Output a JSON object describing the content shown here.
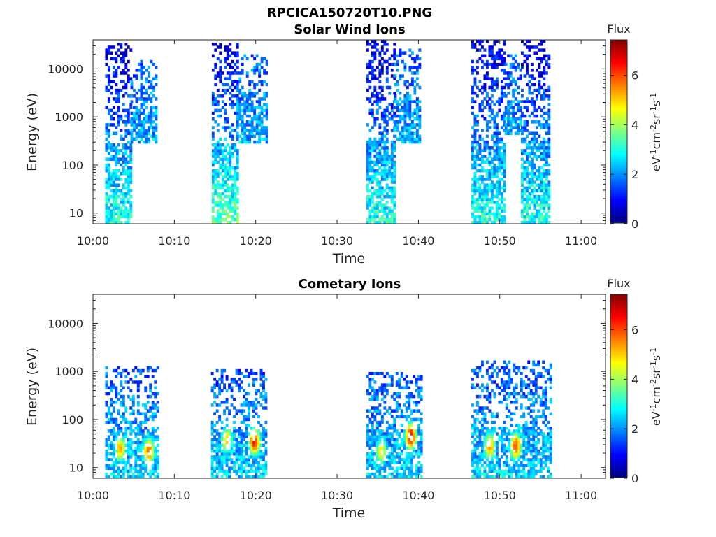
{
  "figure_title": "RPCICA150720T10.PNG",
  "colorbar": {
    "title": "Flux",
    "label_parts": [
      "eV",
      "-1",
      "cm",
      "-2",
      "sr",
      "-1",
      "s",
      "-1"
    ],
    "range": [
      0,
      7.4
    ],
    "ticks": [
      {
        "value": 0,
        "label": "0"
      },
      {
        "value": 2,
        "label": "2"
      },
      {
        "value": 4,
        "label": "4"
      },
      {
        "value": 6,
        "label": "6"
      }
    ],
    "colormap": "jet"
  },
  "chart_data": [
    {
      "type": "heatmap",
      "title": "Solar Wind Ions",
      "xlabel": "Time",
      "ylabel": "Energy (eV)",
      "yscale": "log",
      "xlim": [
        "10:00",
        "11:03"
      ],
      "ylim": [
        6,
        40000
      ],
      "x_ticks": [
        "10:00",
        "10:10",
        "10:20",
        "10:30",
        "10:40",
        "10:50",
        "11:00"
      ],
      "y_ticks": [
        {
          "value": 10,
          "label": "10"
        },
        {
          "value": 100,
          "label": "100"
        },
        {
          "value": 1000,
          "label": "1000"
        },
        {
          "value": 10000,
          "label": "10000"
        }
      ],
      "value_label": "Flux",
      "blocks": [
        {
          "time_start": "10:01.5",
          "time_end": "10:04.6",
          "energy_min": 6,
          "energy_max": 35000,
          "flux_low_energy": 3.0,
          "flux_high_energy": 0.6
        },
        {
          "time_start": "10:04.6",
          "time_end": "10:07.7",
          "energy_min": 300,
          "energy_max": 15000,
          "flux_low_energy": 2.2,
          "flux_high_energy": 1.6
        },
        {
          "time_start": "10:14.6",
          "time_end": "10:17.6",
          "energy_min": 6,
          "energy_max": 35000,
          "flux_low_energy": 3.4,
          "flux_high_energy": 0.6
        },
        {
          "time_start": "10:17.6",
          "time_end": "10:21.4",
          "energy_min": 300,
          "energy_max": 20000,
          "flux_low_energy": 2.2,
          "flux_high_energy": 1.6
        },
        {
          "time_start": "10:33.6",
          "time_end": "10:37.0",
          "energy_min": 6,
          "energy_max": 40000,
          "flux_low_energy": 3.0,
          "flux_high_energy": 0.6
        },
        {
          "time_start": "10:37.0",
          "time_end": "10:40.0",
          "energy_min": 300,
          "energy_max": 25000,
          "flux_low_energy": 2.2,
          "flux_high_energy": 1.6
        },
        {
          "time_start": "10:46.5",
          "time_end": "10:50.6",
          "energy_min": 6,
          "energy_max": 40000,
          "flux_low_energy": 3.0,
          "flux_high_energy": 0.6
        },
        {
          "time_start": "10:50.6",
          "time_end": "10:52.6",
          "energy_min": 400,
          "energy_max": 20000,
          "flux_low_energy": 2.2,
          "flux_high_energy": 1.6
        },
        {
          "time_start": "10:52.6",
          "time_end": "10:56.0",
          "energy_min": 6,
          "energy_max": 40000,
          "flux_low_energy": 3.0,
          "flux_high_energy": 0.6
        }
      ]
    },
    {
      "type": "heatmap",
      "title": "Cometary Ions",
      "xlabel": "Time",
      "ylabel": "Energy (eV)",
      "yscale": "log",
      "xlim": [
        "10:00",
        "11:03"
      ],
      "ylim": [
        6,
        40000
      ],
      "x_ticks": [
        "10:00",
        "10:10",
        "10:20",
        "10:30",
        "10:40",
        "10:50",
        "11:00"
      ],
      "y_ticks": [
        {
          "value": 10,
          "label": "10"
        },
        {
          "value": 100,
          "label": "100"
        },
        {
          "value": 1000,
          "label": "1000"
        },
        {
          "value": 10000,
          "label": "10000"
        }
      ],
      "value_label": "Flux",
      "blocks": [
        {
          "time_start": "10:01.5",
          "time_end": "10:08.0",
          "energy_min": 6,
          "energy_max": 1300,
          "flux_low_energy": 2.5,
          "flux_high_energy": 1.5
        },
        {
          "time_start": "10:14.5",
          "time_end": "10:21.3",
          "energy_min": 6,
          "energy_max": 1100,
          "flux_low_energy": 2.5,
          "flux_high_energy": 1.5
        },
        {
          "time_start": "10:33.6",
          "time_end": "10:40.3",
          "energy_min": 6,
          "energy_max": 1000,
          "flux_low_energy": 2.5,
          "flux_high_energy": 1.5
        },
        {
          "time_start": "10:46.5",
          "time_end": "10:56.3",
          "energy_min": 6,
          "energy_max": 1600,
          "flux_low_energy": 2.5,
          "flux_high_energy": 1.5
        }
      ],
      "peaks": [
        {
          "time": "10:03.2",
          "energy": 25,
          "flux": 5.2
        },
        {
          "time": "10:06.7",
          "energy": 22,
          "flux": 5.8
        },
        {
          "time": "10:16.3",
          "energy": 38,
          "flux": 5.0
        },
        {
          "time": "10:19.7",
          "energy": 35,
          "flux": 6.3
        },
        {
          "time": "10:35.3",
          "energy": 22,
          "flux": 4.8
        },
        {
          "time": "10:38.9",
          "energy": 45,
          "flux": 6.6
        },
        {
          "time": "10:48.6",
          "energy": 28,
          "flux": 5.4
        },
        {
          "time": "10:51.8",
          "energy": 28,
          "flux": 6.0
        }
      ]
    }
  ]
}
